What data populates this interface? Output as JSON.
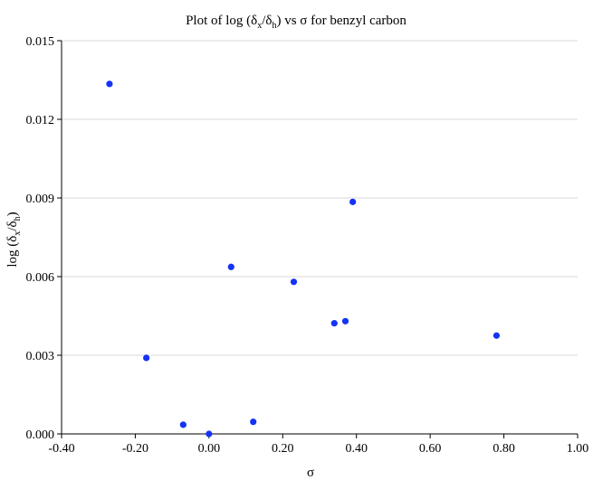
{
  "chart_data": {
    "type": "scatter",
    "title": {
      "main": "Plot of log (δ",
      "sub1": "x",
      "mid": "/δ",
      "sub2": "h",
      "tail": ") vs σ for benzyl carbon"
    },
    "xlabel": "σ",
    "ylabel": {
      "main": "log (δ",
      "sub1": "x",
      "mid": "/δ",
      "sub2": "h",
      "tail": ")"
    },
    "xlim": [
      -0.4,
      1.0
    ],
    "ylim": [
      0.0,
      0.015
    ],
    "x_ticks": [
      "-0.40",
      "-0.20",
      "0.00",
      "0.20",
      "0.40",
      "0.60",
      "0.80",
      "1.00"
    ],
    "y_ticks": [
      "0.000",
      "0.003",
      "0.006",
      "0.009",
      "0.012",
      "0.015"
    ],
    "grid": "horizontal",
    "marker_color": "#1433f5",
    "points": [
      {
        "x": -0.27,
        "y": 0.01335
      },
      {
        "x": -0.17,
        "y": 0.0029
      },
      {
        "x": -0.07,
        "y": 0.00035
      },
      {
        "x": 0.0,
        "y": 0.0
      },
      {
        "x": 0.06,
        "y": 0.00637
      },
      {
        "x": 0.12,
        "y": 0.00046
      },
      {
        "x": 0.23,
        "y": 0.0058
      },
      {
        "x": 0.34,
        "y": 0.00422
      },
      {
        "x": 0.37,
        "y": 0.0043
      },
      {
        "x": 0.39,
        "y": 0.00885
      },
      {
        "x": 0.78,
        "y": 0.00375
      }
    ]
  }
}
